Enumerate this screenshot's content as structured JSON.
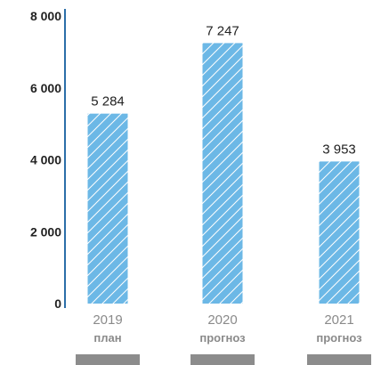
{
  "chart_data": {
    "type": "bar",
    "title": "",
    "xlabel": "",
    "ylabel": "",
    "categories": [
      "2019",
      "2020",
      "2021"
    ],
    "category_sublabels": [
      "план",
      "прогноз",
      "прогноз"
    ],
    "values": [
      5284,
      7247,
      3953
    ],
    "value_labels": [
      "5 284",
      "7 247",
      "3 953"
    ],
    "ylim": [
      0,
      8000
    ],
    "yticks": [
      0,
      2000,
      4000,
      6000,
      8000
    ],
    "ytick_labels": [
      "0",
      "2 000",
      "4 000",
      "6 000",
      "8 000"
    ],
    "grid": false,
    "bar_fill": "#6cb8e6",
    "bar_hatch": "#ffffff",
    "axis_color": "#2b6ea8",
    "category_label_color": "#8a8a8a",
    "footer_bar_color": "#8c8c8c",
    "text_color": "#222222"
  }
}
